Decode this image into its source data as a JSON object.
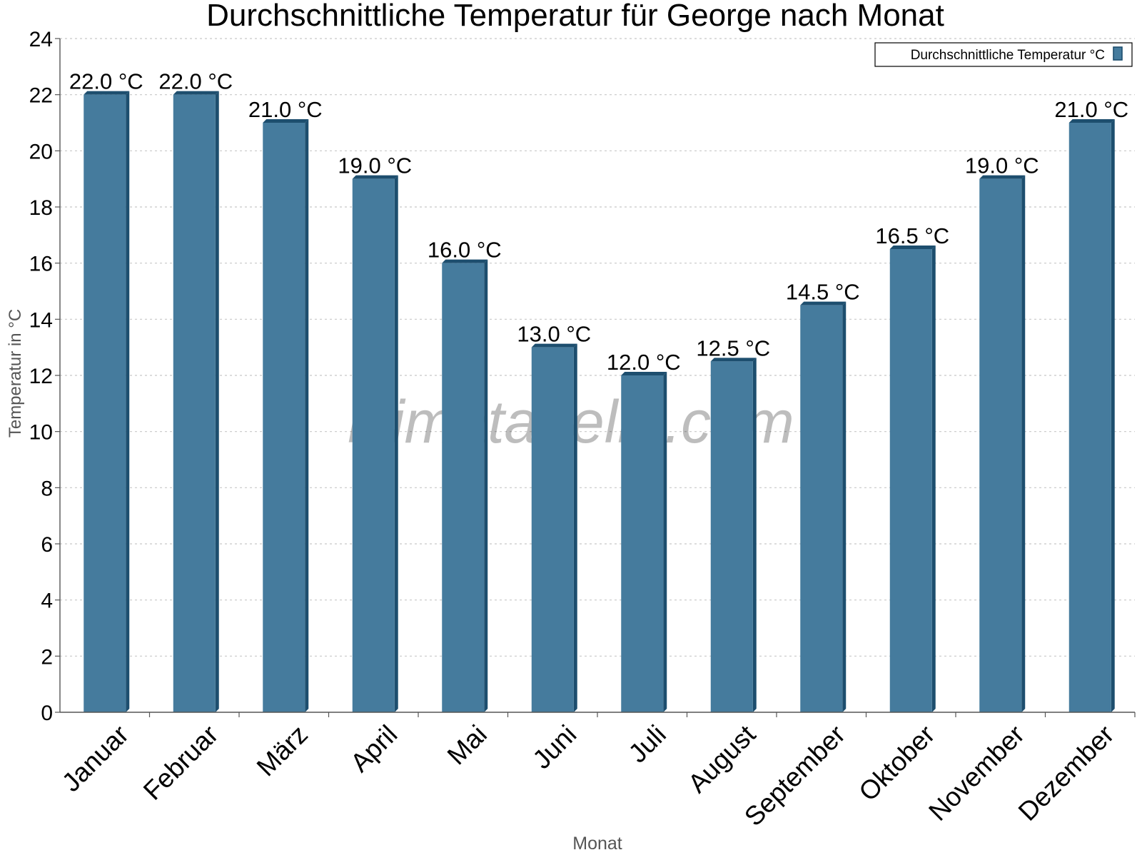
{
  "chart_data": {
    "type": "bar",
    "title": "Durchschnittliche Temperatur für George nach Monat",
    "xlabel": "Monat",
    "ylabel": "Temperatur in °C",
    "categories": [
      "Januar",
      "Februar",
      "März",
      "April",
      "Mai",
      "Juni",
      "Juli",
      "August",
      "September",
      "Oktober",
      "November",
      "Dezember"
    ],
    "series": [
      {
        "name": "Durchschnittliche Temperatur °C",
        "values": [
          22.0,
          22.0,
          21.0,
          19.0,
          16.0,
          13.0,
          12.0,
          12.5,
          14.5,
          16.5,
          19.0,
          21.0
        ],
        "data_labels": [
          "22.0 °C",
          "22.0 °C",
          "21.0 °C",
          "19.0 °C",
          "16.0 °C",
          "13.0 °C",
          "12.0 °C",
          "12.5 °C",
          "14.5 °C",
          "16.5 °C",
          "19.0 °C",
          "21.0 °C"
        ],
        "color": "#457b9d",
        "edge_color": "#1d4e6e"
      }
    ],
    "ylim": [
      0,
      24
    ],
    "yticks": [
      0,
      2,
      4,
      6,
      8,
      10,
      12,
      14,
      16,
      18,
      20,
      22,
      24
    ],
    "grid": true,
    "legend_position": "top-right",
    "watermark": "klimatabelle.com"
  }
}
